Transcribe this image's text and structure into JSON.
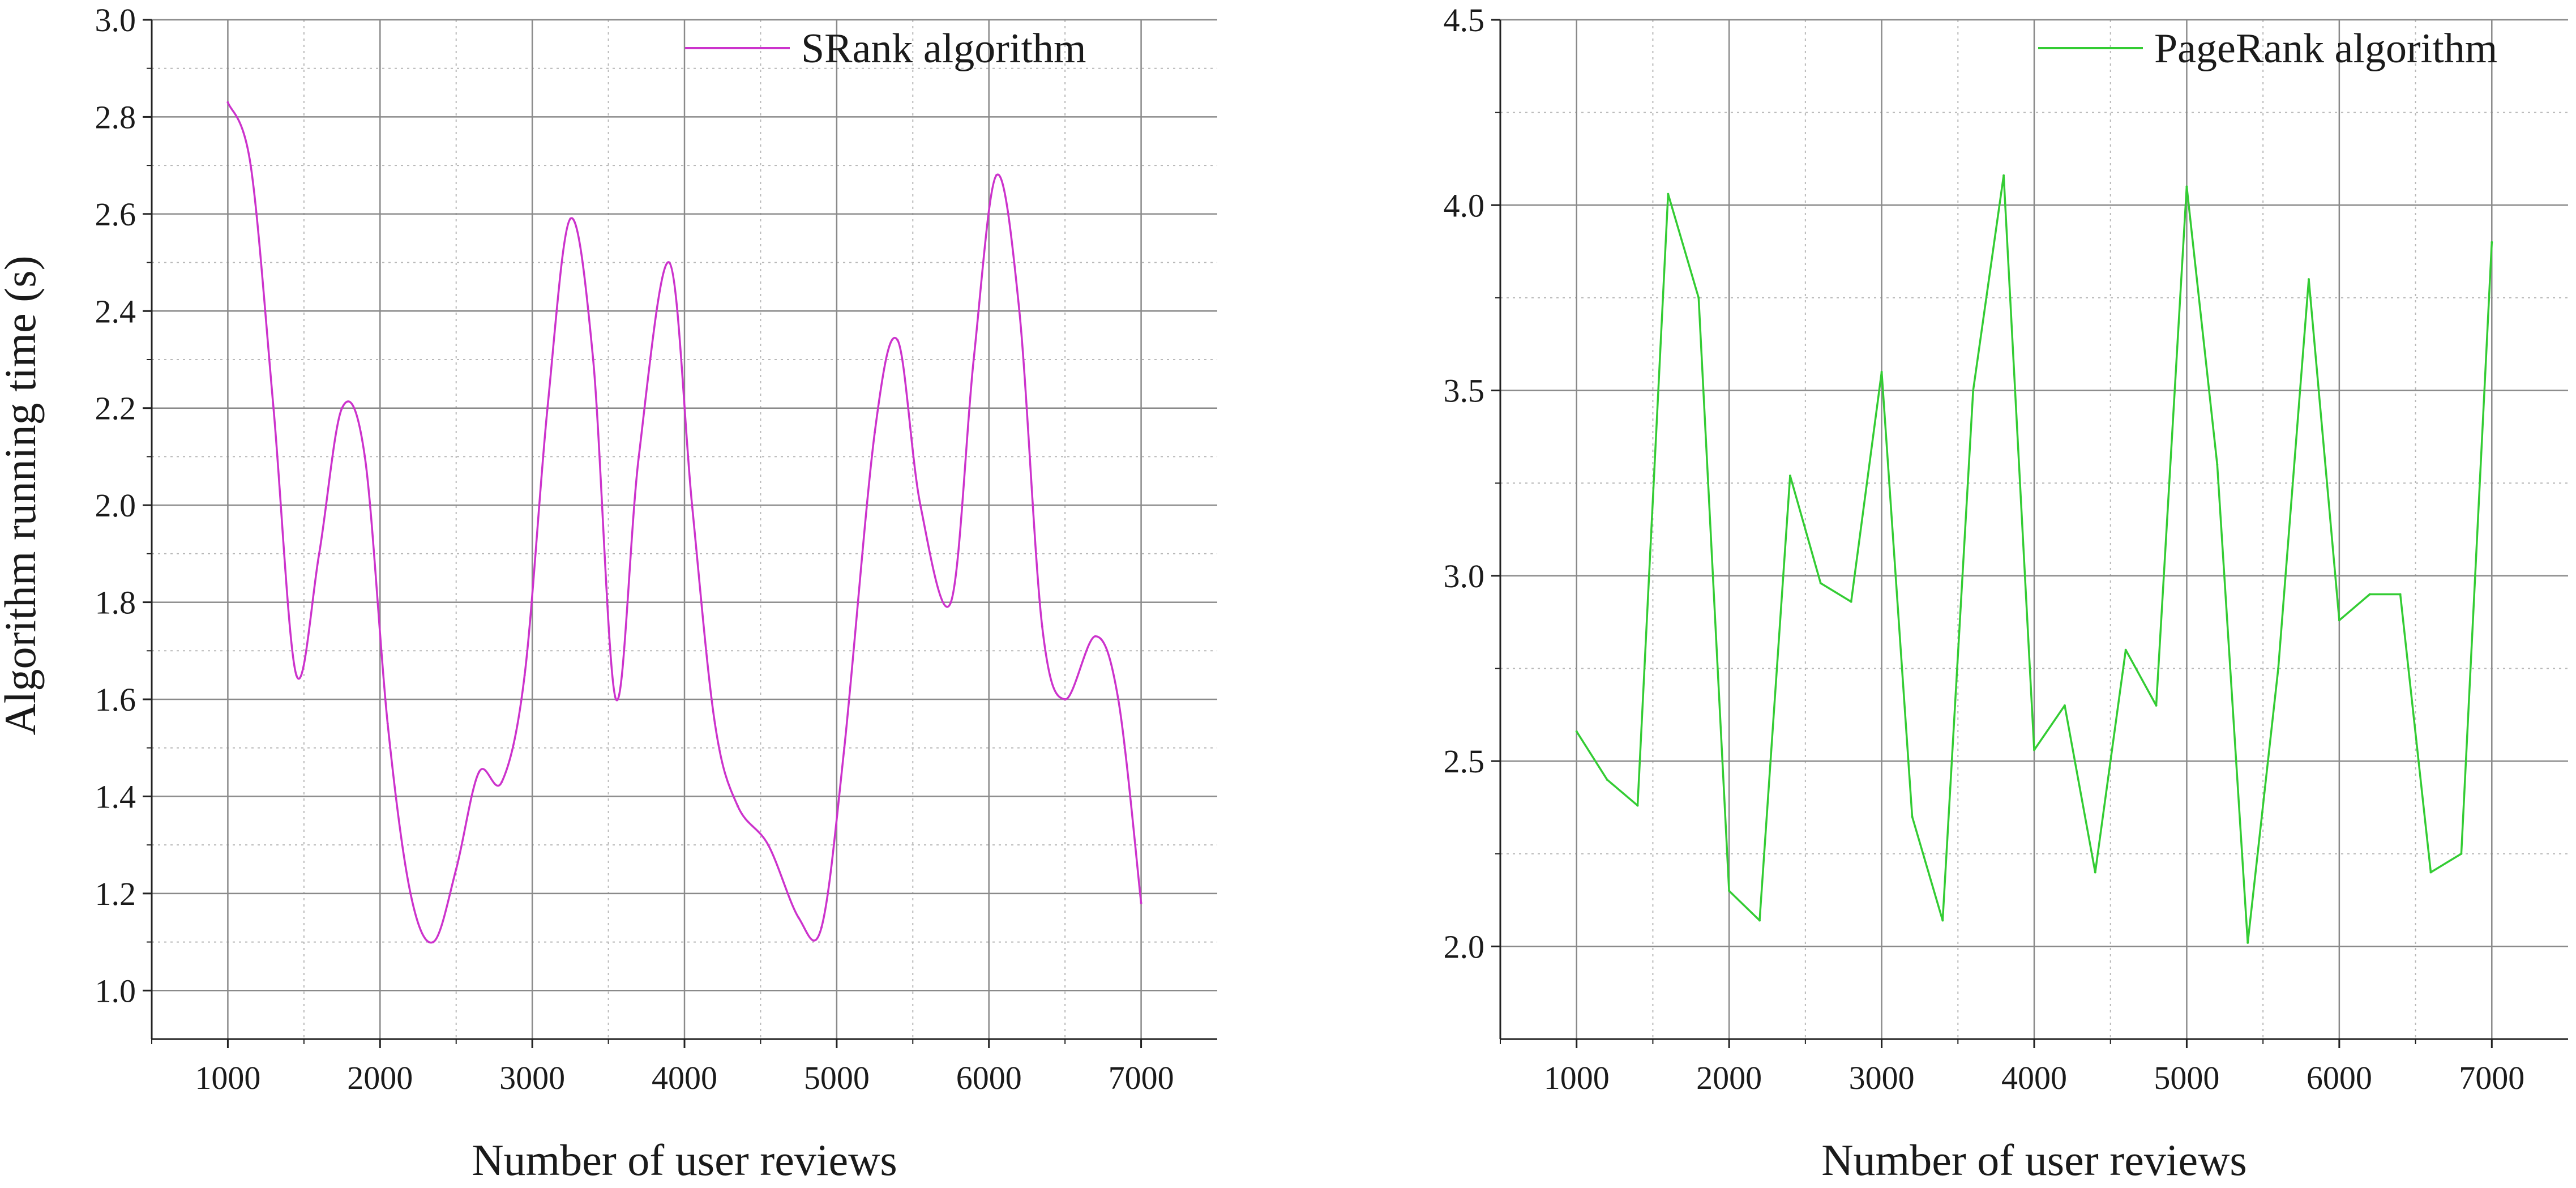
{
  "chart_data": [
    {
      "type": "line",
      "xlabel": "Number of user reviews",
      "ylabel": "Algorithm running time (s)",
      "xlim": [
        500,
        7500
      ],
      "ylim": [
        0.9,
        3.0
      ],
      "xticks": [
        1000,
        2000,
        3000,
        4000,
        5000,
        6000,
        7000
      ],
      "yticks": [
        1.0,
        1.2,
        1.4,
        1.6,
        1.8,
        2.0,
        2.2,
        2.4,
        2.6,
        2.8,
        3.0
      ],
      "ytick_labels": [
        "1.0",
        "1.2",
        "1.4",
        "1.6",
        "1.8",
        "2.0",
        "2.2",
        "2.4",
        "2.6",
        "2.8",
        "3.0"
      ],
      "grid": true,
      "legend_position": "top-right",
      "smooth": true,
      "series": [
        {
          "name": "SRank algorithm",
          "color": "#cc33cc",
          "x": [
            1000,
            1150,
            1300,
            1450,
            1600,
            1750,
            1900,
            2050,
            2200,
            2350,
            2500,
            2650,
            2800,
            2950,
            3100,
            3250,
            3400,
            3550,
            3700,
            3900,
            4050,
            4200,
            4350,
            4550,
            4750,
            4900,
            5050,
            5250,
            5400,
            5550,
            5750,
            5900,
            6050,
            6200,
            6350,
            6500,
            6700,
            6850,
            7000
          ],
          "y": [
            2.83,
            2.7,
            2.2,
            1.65,
            1.9,
            2.2,
            2.1,
            1.55,
            1.2,
            1.1,
            1.25,
            1.45,
            1.43,
            1.65,
            2.2,
            2.59,
            2.3,
            1.6,
            2.1,
            2.5,
            2.0,
            1.55,
            1.38,
            1.3,
            1.15,
            1.13,
            1.5,
            2.15,
            2.34,
            2.0,
            1.8,
            2.3,
            2.68,
            2.4,
            1.75,
            1.6,
            1.73,
            1.6,
            1.18
          ]
        }
      ]
    },
    {
      "type": "line",
      "xlabel": "Number of user reviews",
      "ylabel": "",
      "xlim": [
        500,
        7500
      ],
      "ylim": [
        1.75,
        4.5
      ],
      "xticks": [
        1000,
        2000,
        3000,
        4000,
        5000,
        6000,
        7000
      ],
      "yticks": [
        2.0,
        2.5,
        3.0,
        3.5,
        4.0,
        4.5
      ],
      "ytick_labels": [
        "2.0",
        "2.5",
        "3.0",
        "3.5",
        "4.0",
        "4.5"
      ],
      "grid": true,
      "legend_position": "top-right",
      "smooth": false,
      "series": [
        {
          "name": "PageRank algorithm",
          "color": "#33cc33",
          "x": [
            1000,
            1200,
            1400,
            1600,
            1800,
            2000,
            2200,
            2400,
            2600,
            2800,
            3000,
            3200,
            3400,
            3600,
            3800,
            4000,
            4200,
            4400,
            4600,
            4800,
            5000,
            5200,
            5400,
            5600,
            5800,
            6000,
            6200,
            6400,
            6600,
            6800,
            7000
          ],
          "y": [
            2.58,
            2.45,
            2.38,
            4.03,
            3.75,
            2.15,
            2.07,
            3.27,
            2.98,
            2.93,
            3.55,
            2.35,
            2.07,
            3.5,
            4.08,
            2.53,
            2.65,
            2.2,
            2.8,
            2.65,
            4.05,
            3.3,
            2.01,
            2.75,
            3.8,
            2.88,
            2.95,
            2.95,
            2.2,
            2.25,
            3.9
          ]
        }
      ]
    }
  ]
}
